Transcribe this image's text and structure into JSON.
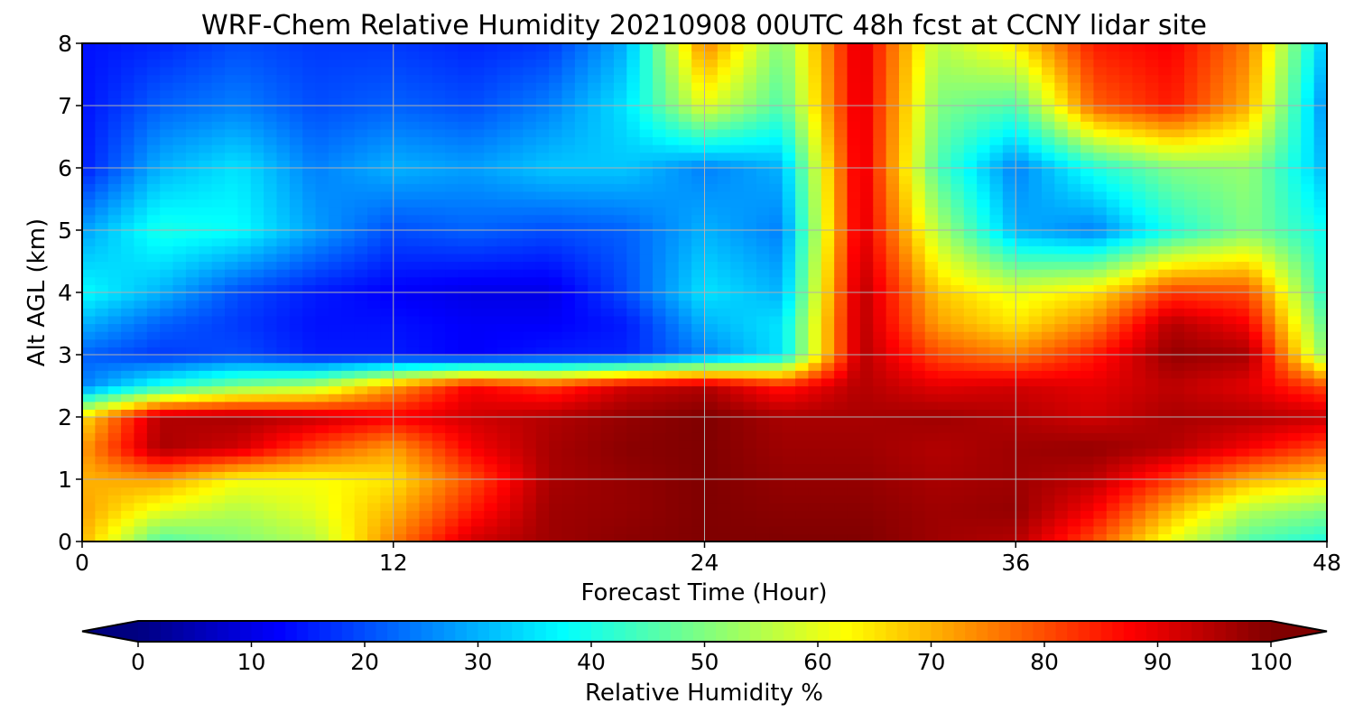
{
  "chart_data": {
    "type": "heatmap",
    "title": "WRF-Chem Relative Humidity 20210908 00UTC 48h fcst at CCNY lidar site",
    "xlabel": "Forecast Time (Hour)",
    "ylabel": "Alt AGL (km)",
    "xlim": [
      0,
      48
    ],
    "ylim": [
      0,
      8
    ],
    "x_ticks": [
      0,
      12,
      24,
      36,
      48
    ],
    "y_ticks": [
      0,
      1,
      2,
      3,
      4,
      5,
      6,
      7,
      8
    ],
    "grid": true,
    "x": [
      0,
      3,
      6,
      9,
      12,
      15,
      18,
      21,
      24,
      27,
      30,
      33,
      36,
      39,
      42,
      45,
      48
    ],
    "y": [
      0,
      0.5,
      1,
      1.5,
      2,
      2.5,
      3,
      3.5,
      4,
      5,
      6,
      7,
      8
    ],
    "z": [
      [
        70,
        45,
        50,
        55,
        75,
        92,
        97,
        99,
        100,
        100,
        100,
        97,
        95,
        80,
        60,
        45,
        40
      ],
      [
        72,
        60,
        55,
        60,
        70,
        85,
        97,
        98,
        100,
        99,
        99,
        97,
        98,
        88,
        70,
        55,
        50
      ],
      [
        70,
        72,
        62,
        62,
        65,
        80,
        96,
        98,
        100,
        98,
        98,
        96,
        97,
        94,
        82,
        70,
        65
      ],
      [
        72,
        96,
        92,
        80,
        72,
        88,
        96,
        99,
        100,
        97,
        97,
        95,
        97,
        98,
        95,
        88,
        80
      ],
      [
        65,
        95,
        96,
        93,
        88,
        92,
        95,
        98,
        100,
        96,
        96,
        97,
        95,
        92,
        96,
        95,
        93
      ],
      [
        25,
        40,
        50,
        55,
        72,
        88,
        82,
        92,
        95,
        85,
        95,
        90,
        92,
        90,
        94,
        90,
        80
      ],
      [
        22,
        18,
        20,
        15,
        15,
        12,
        15,
        16,
        25,
        35,
        95,
        80,
        75,
        85,
        98,
        96,
        50
      ],
      [
        30,
        22,
        18,
        14,
        14,
        12,
        12,
        15,
        30,
        35,
        95,
        72,
        65,
        75,
        95,
        88,
        45
      ],
      [
        38,
        30,
        20,
        15,
        12,
        10,
        10,
        20,
        35,
        30,
        95,
        68,
        60,
        65,
        82,
        80,
        40
      ],
      [
        28,
        40,
        38,
        28,
        20,
        22,
        20,
        22,
        30,
        25,
        92,
        55,
        30,
        25,
        40,
        50,
        38
      ],
      [
        15,
        30,
        35,
        25,
        30,
        28,
        32,
        32,
        25,
        30,
        92,
        45,
        25,
        40,
        50,
        52,
        30
      ],
      [
        14,
        22,
        25,
        20,
        22,
        20,
        25,
        35,
        60,
        45,
        92,
        50,
        45,
        78,
        85,
        70,
        25
      ],
      [
        14,
        16,
        20,
        18,
        18,
        16,
        18,
        30,
        75,
        50,
        92,
        55,
        65,
        85,
        88,
        75,
        30
      ]
    ],
    "colorbar": {
      "label": "Relative Humidity %",
      "min": 0,
      "max": 100,
      "ticks": [
        0,
        10,
        20,
        30,
        40,
        50,
        60,
        70,
        80,
        90,
        100
      ],
      "extend": "both",
      "colormap": "jet",
      "colors": [
        "#000080",
        "#0000ff",
        "#0080ff",
        "#00ffff",
        "#80ff80",
        "#ffff00",
        "#ff8000",
        "#ff0000",
        "#800000"
      ]
    }
  }
}
